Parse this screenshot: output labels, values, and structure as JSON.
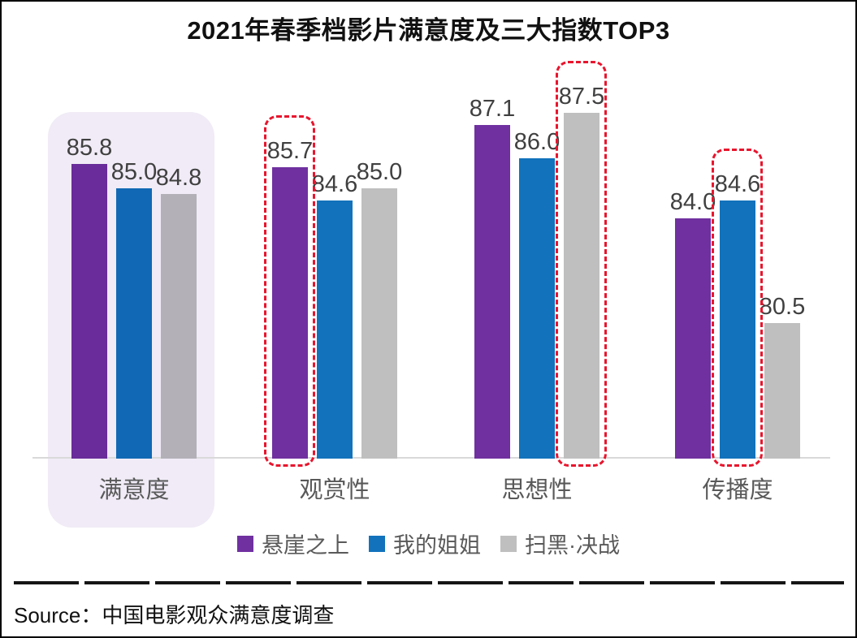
{
  "title": "2021年春季档影片满意度及三大指数TOP3",
  "source": {
    "label": "Source：中国电影观众满意度调查"
  },
  "colors": {
    "highlight_panel": "#F0EBF6",
    "highlight_box": "#E8152D",
    "axis_line": "#D9D9D9",
    "value_label": "#404040",
    "category_label": "#595959",
    "legend_label": "#595959",
    "separator": "#151515"
  },
  "chart_data": {
    "type": "bar",
    "title": "2021年春季档影片满意度及三大指数TOP3",
    "categories": [
      "满意度",
      "观赏性",
      "思想性",
      "传播度"
    ],
    "series": [
      {
        "name": "悬崖之上",
        "color": "#7030A0",
        "values": [
          85.8,
          85.7,
          87.1,
          84.0
        ]
      },
      {
        "name": "我的姐姐",
        "color": "#1272BC",
        "values": [
          85.0,
          84.6,
          86.0,
          84.6
        ]
      },
      {
        "name": "扫黑·决战",
        "color": "#BFBFBF",
        "values": [
          84.8,
          85.0,
          87.5,
          80.5
        ]
      }
    ],
    "ylim": [
      76,
      88.5
    ],
    "grid": false,
    "legend_position": "bottom",
    "value_labels_shown": true,
    "value_label_decimals": 1,
    "highlighted_category": 0,
    "highlighted_bars": [
      {
        "category_index": 1,
        "series_index": 0,
        "value": 85.7
      },
      {
        "category_index": 2,
        "series_index": 2,
        "value": 87.5
      },
      {
        "category_index": 3,
        "series_index": 1,
        "value": 84.6
      }
    ]
  }
}
